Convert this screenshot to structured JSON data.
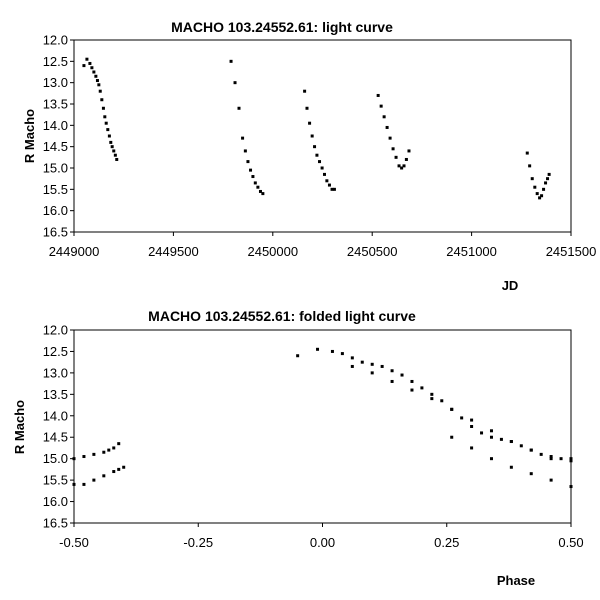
{
  "chart_data": [
    {
      "type": "scatter",
      "title": "MACHO 103.24552.61: light curve",
      "xlabel": "JD",
      "ylabel": "R Macho",
      "xlim": [
        2449000,
        2451500
      ],
      "ylim": [
        16.5,
        12.0
      ],
      "y_inverted": true,
      "xticks": [
        "2449000",
        "2449500",
        "2450000",
        "2450500",
        "2451000",
        "2451500"
      ],
      "yticks": [
        "12.0",
        "12.5",
        "13.0",
        "13.5",
        "14.0",
        "14.5",
        "15.0",
        "15.5",
        "16.0",
        "16.5"
      ],
      "grid": false,
      "series": [
        {
          "color": "#000000",
          "x": [
            2449050,
            2449065,
            2449080,
            2449090,
            2449100,
            2449110,
            2449118,
            2449125,
            2449132,
            2449140,
            2449148,
            2449155,
            2449162,
            2449170,
            2449178,
            2449185,
            2449192,
            2449200,
            2449208,
            2449215,
            2449790,
            2449810,
            2449830,
            2449848,
            2449862,
            2449875,
            2449888,
            2449900,
            2449912,
            2449925,
            2449938,
            2449950,
            2450160,
            2450172,
            2450185,
            2450198,
            2450210,
            2450222,
            2450235,
            2450248,
            2450260,
            2450272,
            2450285,
            2450298,
            2450310,
            2450530,
            2450545,
            2450560,
            2450575,
            2450590,
            2450605,
            2450620,
            2450635,
            2450648,
            2450660,
            2450672,
            2450685,
            2451280,
            2451292,
            2451305,
            2451318,
            2451330,
            2451342,
            2451352,
            2451362,
            2451372,
            2451382,
            2451390
          ],
          "y": [
            12.6,
            12.45,
            12.55,
            12.65,
            12.75,
            12.85,
            12.95,
            13.05,
            13.2,
            13.4,
            13.6,
            13.8,
            13.95,
            14.1,
            14.25,
            14.4,
            14.5,
            14.6,
            14.7,
            14.8,
            12.5,
            13.0,
            13.6,
            14.3,
            14.6,
            14.85,
            15.05,
            15.2,
            15.35,
            15.45,
            15.55,
            15.6,
            13.2,
            13.6,
            13.95,
            14.25,
            14.5,
            14.7,
            14.85,
            15.0,
            15.15,
            15.3,
            15.4,
            15.5,
            15.5,
            13.3,
            13.55,
            13.8,
            14.05,
            14.3,
            14.55,
            14.75,
            14.95,
            15.0,
            14.95,
            14.8,
            14.6,
            14.65,
            14.95,
            15.25,
            15.45,
            15.6,
            15.7,
            15.65,
            15.5,
            15.35,
            15.25,
            15.15
          ]
        }
      ]
    },
    {
      "type": "scatter",
      "title": "MACHO 103.24552.61: folded light curve",
      "xlabel": "Phase",
      "ylabel": "R Macho",
      "xlim": [
        -0.5,
        0.5
      ],
      "ylim": [
        16.5,
        12.0
      ],
      "y_inverted": true,
      "xticks": [
        "-0.50",
        "-0.25",
        "0.00",
        "0.25",
        "0.50"
      ],
      "yticks": [
        "12.0",
        "12.5",
        "13.0",
        "13.5",
        "14.0",
        "14.5",
        "15.0",
        "15.5",
        "16.0",
        "16.5"
      ],
      "grid": false,
      "series": [
        {
          "color": "#000000",
          "x": [
            -0.5,
            -0.48,
            -0.46,
            -0.44,
            -0.43,
            -0.42,
            -0.41,
            -0.5,
            -0.48,
            -0.46,
            -0.44,
            -0.42,
            -0.41,
            -0.4,
            -0.05,
            -0.01,
            0.02,
            0.04,
            0.06,
            0.08,
            0.1,
            0.12,
            0.14,
            0.16,
            0.18,
            0.2,
            0.22,
            0.24,
            0.26,
            0.28,
            0.3,
            0.32,
            0.34,
            0.36,
            0.38,
            0.4,
            0.42,
            0.44,
            0.46,
            0.48,
            0.5,
            0.06,
            0.1,
            0.14,
            0.18,
            0.22,
            0.26,
            0.3,
            0.34,
            0.38,
            0.42,
            0.46,
            0.5,
            0.26,
            0.3,
            0.34,
            0.38,
            0.42,
            0.46,
            0.5
          ],
          "y": [
            15.0,
            14.95,
            14.9,
            14.85,
            14.8,
            14.75,
            14.65,
            15.6,
            15.6,
            15.5,
            15.4,
            15.3,
            15.25,
            15.2,
            12.6,
            12.45,
            12.5,
            12.55,
            12.65,
            12.75,
            12.8,
            12.85,
            12.95,
            13.05,
            13.2,
            13.35,
            13.5,
            13.65,
            13.85,
            14.05,
            14.25,
            14.4,
            14.5,
            14.55,
            14.6,
            14.7,
            14.8,
            14.9,
            15.0,
            15.0,
            15.05,
            12.85,
            13.0,
            13.2,
            13.4,
            13.6,
            13.85,
            14.1,
            14.35,
            14.6,
            14.8,
            14.95,
            15.0,
            14.5,
            14.75,
            15.0,
            15.2,
            15.35,
            15.5,
            15.65
          ]
        }
      ]
    }
  ]
}
